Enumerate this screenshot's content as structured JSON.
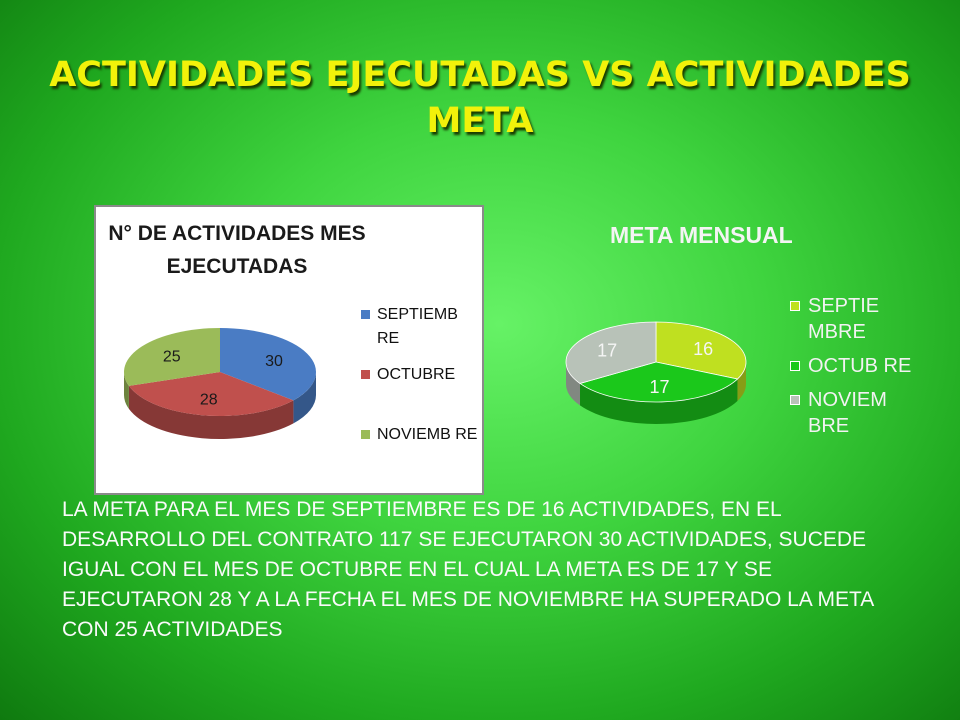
{
  "slide": {
    "title": "ACTIVIDADES EJECUTADAS VS ACTIVIDADES META",
    "description": "LA META PARA EL MES DE SEPTIEMBRE ES DE 16 ACTIVIDADES, EN EL DESARROLLO DEL CONTRATO 117 SE EJECUTARON 30 ACTIVIDADES, SUCEDE IGUAL CON EL MES DE OCTUBRE EN EL CUAL LA META ES DE 17 Y SE EJECUTARON 28 Y A LA FECHA EL MES DE NOVIEMBRE HA SUPERADO LA META CON 25 ACTIVIDADES"
  },
  "chart_data": [
    {
      "type": "pie",
      "title": "N° DE ACTIVIDADES MES EJECUTADAS",
      "categories": [
        "SEPTIEMBRE",
        "OCTUBRE",
        "NOVIEMBRE"
      ],
      "legend_labels": [
        "SEPTIEMB RE",
        "OCTUBRE",
        "NOVIEMB RE"
      ],
      "values": [
        30,
        28,
        25
      ],
      "colors": [
        "#4a7cc4",
        "#c0504d",
        "#9bbb59"
      ],
      "legend": "right"
    },
    {
      "type": "pie",
      "title": "META MENSUAL",
      "categories": [
        "SEPTIEMBRE",
        "OCTUBRE",
        "NOVIEMBRE"
      ],
      "legend_labels": [
        "SEPTIE MBRE",
        "OCTUB RE",
        "NOVIEM BRE"
      ],
      "values": [
        16,
        17,
        17
      ],
      "colors": [
        "#bfe020",
        "#1bc81b",
        "#b8c2b8"
      ],
      "legend": "right"
    }
  ]
}
